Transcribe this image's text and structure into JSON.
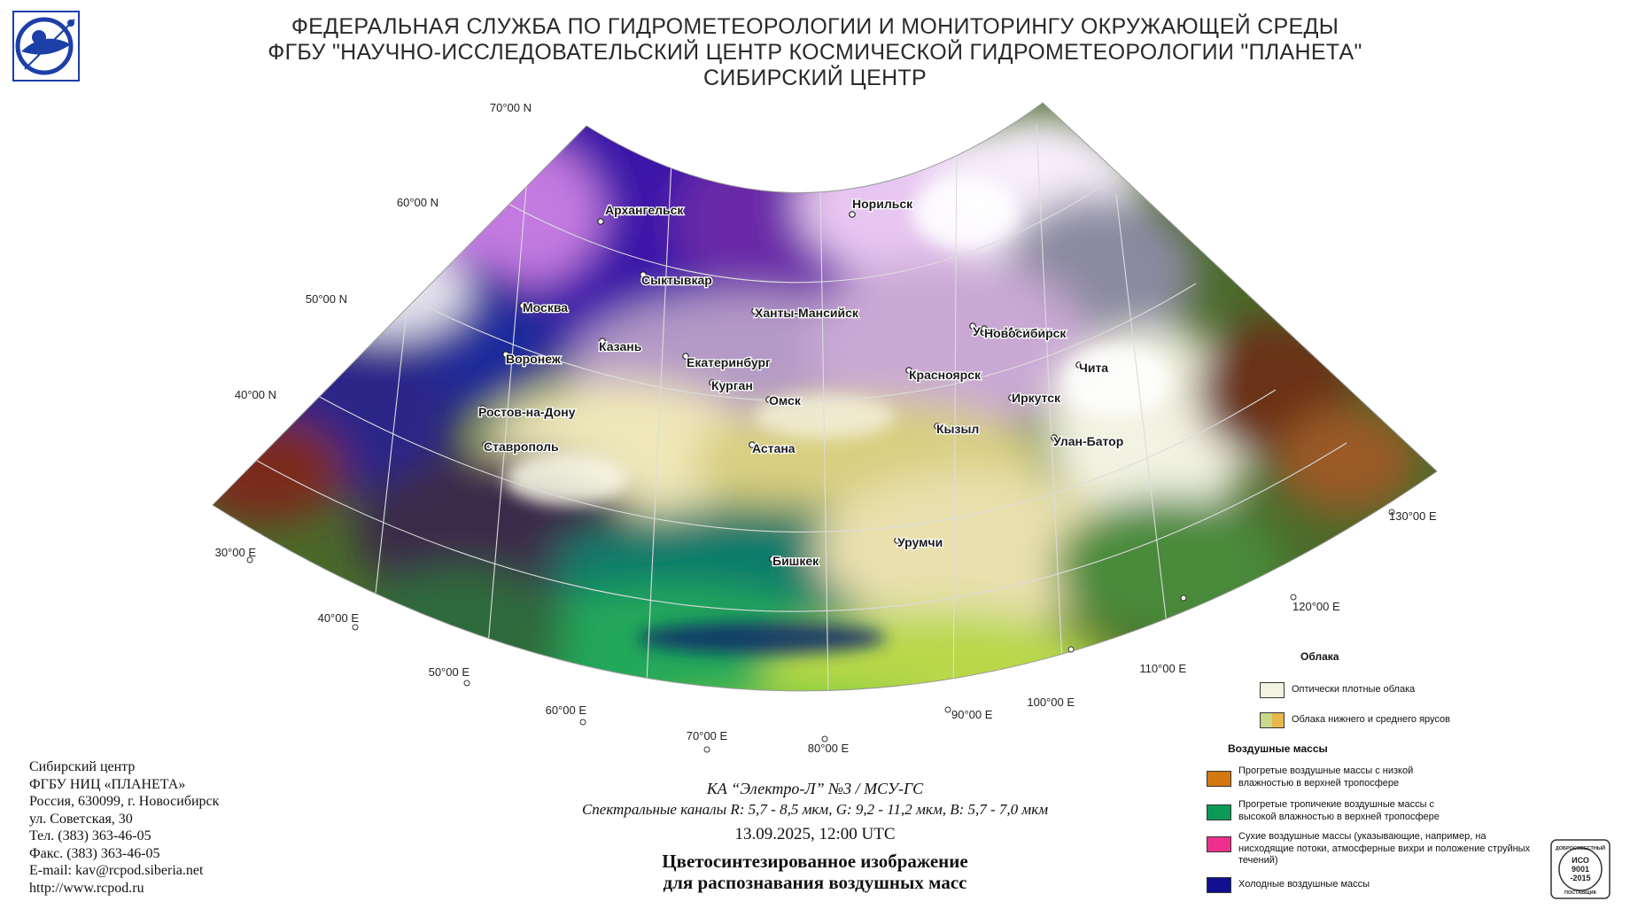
{
  "header": {
    "line1": "ФЕДЕРАЛЬНАЯ СЛУЖБА ПО ГИДРОМЕТЕОРОЛОГИИ И МОНИТОРИНГУ ОКРУЖАЮЩЕЙ СРЕДЫ",
    "line2": "ФГБУ \"НАУЧНО-ИССЛЕДОВАТЕЛЬСКИЙ ЦЕНТР КОСМИЧЕСКОЙ ГИДРОМЕТЕОРОЛОГИИ \"ПЛАНЕТА\"",
    "line3": "СИБИРСКИЙ ЦЕНТР"
  },
  "logo_icon": "planeta-logo-icon",
  "map": {
    "lat_labels": [
      "70°00 N",
      "60°00 N",
      "50°00 N",
      "40°00 N"
    ],
    "lon_labels": [
      "30°00 E",
      "40°00 E",
      "50°00 E",
      "60°00 E",
      "70°00 E",
      "80°00 E",
      "90°00 E",
      "100°00 E",
      "110°00 E",
      "120°00 E",
      "130°00 E"
    ],
    "cities": [
      "Архангельск",
      "Норильск",
      "Сыктывкар",
      "Москва",
      "Ханты-Мансийск",
      "Казань",
      "Усть-Илимск",
      "Воронеж",
      "Екатеринбург",
      "Чита",
      "Красноярск",
      "Курган",
      "Омск",
      "Новосибирск",
      "Иркутск",
      "Ростов-на-Дону",
      "Кызыл",
      "Улан-Батор",
      "Ставрополь",
      "Астана",
      "Урумчи",
      "Бишкек"
    ]
  },
  "info": {
    "line1": "Сибирский центр",
    "line2": "ФГБУ НИЦ «ПЛАНЕТА»",
    "line3": "Россия, 630099, г. Новосибирск",
    "line4": "ул. Советская, 30",
    "line5": "Тел. (383) 363-46-05",
    "line6": "Факс. (383) 363-46-05",
    "line7": "E-mail: kav@rcpod.siberia.net",
    "line8": "http://www.rcpod.ru"
  },
  "caption": {
    "satellite": "КА “Электро-Л” №3 / МСУ-ГС",
    "channels": "Спектральные каналы R: 5,7 - 8,5 мкм, G: 9,2 - 11,2 мкм, B: 5,7 - 7,0 мкм",
    "datetime": "13.09.2025, 12:00 UTC",
    "title1": "Цветосинтезированное изображение",
    "title2": "для распознавания воздушных масс"
  },
  "legend": {
    "clouds_heading": "Облака",
    "dense_clouds": "Оптически плотные облака",
    "low_mid_clouds": "Облака нижнего и среднего ярусов",
    "air_masses_heading": "Воздушные массы",
    "warm_low_humidity": "Прогретые воздушные массы с низкой влажностью в верхней тропосфере",
    "warm_tropical": "Прогретые тропичекие воздушные массы с высокой влажностью в верхней тропосфере",
    "dry_masses": "Сухие воздушные массы (указывающие, например, на нисходящие потоки, атмосферные вихри и положение струйных течений)",
    "cold_masses": "Холодные воздушные массы",
    "colors": {
      "dense": "#f3f3e3",
      "low_mid_a": "#c8d98a",
      "low_mid_b": "#e7b84a",
      "warm_dry": "#d2780e",
      "tropical": "#0d9a57",
      "dry": "#ee2f8e",
      "cold": "#101090"
    }
  },
  "iso_badge": {
    "top": "ДОБРОСОВЕСТНЫЙ",
    "line1": "ИСО",
    "line2": "9001",
    "line3": "-2015",
    "bottom": "ПОСТАВЩИК"
  }
}
